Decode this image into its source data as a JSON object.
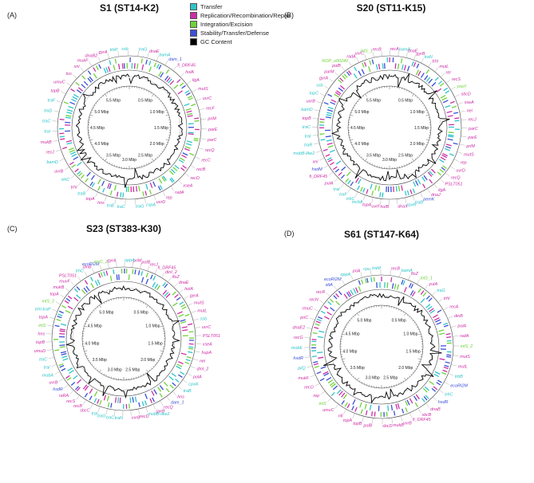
{
  "legend": [
    {
      "label": "Transfer",
      "color": "#2ec4c9"
    },
    {
      "label": "Replication/Recombination/Repair",
      "color": "#cc2fa6"
    },
    {
      "label": "Integration/Excision",
      "color": "#6fd23a"
    },
    {
      "label": "Stability/Transfer/Defense",
      "color": "#3b4fd6"
    },
    {
      "label": "GC Content",
      "color": "#000000"
    }
  ],
  "panels": [
    {
      "id": "A",
      "panel_label": "(A)",
      "title": "S1 (ST14-K2)",
      "scale": [
        "0.5 Mbp",
        "1.0 Mbp",
        "1.5 Mbp",
        "2.0 Mbp",
        "2.5 Mbp",
        "3.0 Mbp",
        "3.5 Mbp",
        "4.0 Mbp",
        "4.5 Mbp",
        "5.0 Mbp",
        "5.5 Mbp"
      ],
      "genes": [
        {
          "name": "traG",
          "cat": 0
        },
        {
          "name": "dnaE",
          "cat": 1
        },
        {
          "name": "bamA",
          "cat": 0
        },
        {
          "name": "dam_1",
          "cat": 3
        },
        {
          "name": "fi_DRF45",
          "cat": 1
        },
        {
          "name": "holA",
          "cat": 1
        },
        {
          "name": "ligA",
          "cat": 1
        },
        {
          "name": "mutS",
          "cat": 1
        },
        {
          "name": "uvrC",
          "cat": 1
        },
        {
          "name": "recF",
          "cat": 1
        },
        {
          "name": "priM",
          "cat": 1
        },
        {
          "name": "parE",
          "cat": 1
        },
        {
          "name": "parC",
          "cat": 1
        },
        {
          "name": "recQ",
          "cat": 1
        },
        {
          "name": "recC",
          "cat": 1
        },
        {
          "name": "recB",
          "cat": 1
        },
        {
          "name": "recD",
          "cat": 1
        },
        {
          "name": "xseA",
          "cat": 1
        },
        {
          "name": "radA",
          "cat": 1
        },
        {
          "name": "rep",
          "cat": 1
        },
        {
          "name": "uvrD",
          "cat": 1
        },
        {
          "name": "cspA",
          "cat": 0
        },
        {
          "name": "traG",
          "cat": 0
        },
        {
          "name": "traC",
          "cat": 0
        },
        {
          "name": "traE",
          "cat": 0
        },
        {
          "name": "hns",
          "cat": 1
        },
        {
          "name": "topA",
          "cat": 1
        },
        {
          "name": "traB",
          "cat": 0
        },
        {
          "name": "trhI",
          "cat": 1
        },
        {
          "name": "trhC",
          "cat": 0
        },
        {
          "name": "uvrB",
          "cat": 1
        },
        {
          "name": "bamD",
          "cat": 0
        },
        {
          "name": "recJ",
          "cat": 1
        },
        {
          "name": "mukB",
          "cat": 1
        },
        {
          "name": "traI",
          "cat": 0
        },
        {
          "name": "traC",
          "cat": 0
        },
        {
          "name": "traD",
          "cat": 0
        },
        {
          "name": "traF",
          "cat": 0
        },
        {
          "name": "topB",
          "cat": 1
        },
        {
          "name": "umuC",
          "cat": 1
        },
        {
          "name": "tus",
          "cat": 1
        },
        {
          "name": "xni",
          "cat": 1
        },
        {
          "name": "mukF",
          "cat": 1
        },
        {
          "name": "dnaB2",
          "cat": 1
        },
        {
          "name": "gyrA",
          "cat": 1
        },
        {
          "name": "trbP",
          "cat": 0
        },
        {
          "name": "ssb",
          "cat": 0
        }
      ]
    },
    {
      "id": "B",
      "panel_label": "(B)",
      "title": "S20 (ST11-K15)",
      "scale": [
        "0.5 Mbp",
        "1.0 Mbp",
        "1.5 Mbp",
        "2.0 Mbp",
        "2.5 Mbp",
        "3.0 Mbp",
        "3.5 Mbp",
        "4.0 Mbp",
        "4.5 Mbp",
        "5.0 Mbp",
        "5.5 Mbp"
      ],
      "genes": [
        {
          "name": "bamA",
          "cat": 0
        },
        {
          "name": "dnaE",
          "cat": 1
        },
        {
          "name": "gyrB",
          "cat": 1
        },
        {
          "name": "traN",
          "cat": 0
        },
        {
          "name": "trhI",
          "cat": 1
        },
        {
          "name": "mutL",
          "cat": 1
        },
        {
          "name": "rer",
          "cat": 1
        },
        {
          "name": "recS",
          "cat": 1
        },
        {
          "name": "yoaY",
          "cat": 2
        },
        {
          "name": "sbcD",
          "cat": 1
        },
        {
          "name": "xseA",
          "cat": 1
        },
        {
          "name": "nei",
          "cat": 1
        },
        {
          "name": "recJ",
          "cat": 1
        },
        {
          "name": "parC",
          "cat": 1
        },
        {
          "name": "parE",
          "cat": 1
        },
        {
          "name": "priM",
          "cat": 1
        },
        {
          "name": "mutS",
          "cat": 1
        },
        {
          "name": "rep",
          "cat": 1
        },
        {
          "name": "uvrD",
          "cat": 1
        },
        {
          "name": "recQ",
          "cat": 1
        },
        {
          "name": "PSLT051",
          "cat": 1
        },
        {
          "name": "ligA",
          "cat": 1
        },
        {
          "name": "dnaJ",
          "cat": 1
        },
        {
          "name": "pemK",
          "cat": 3
        },
        {
          "name": "traB",
          "cat": 0
        },
        {
          "name": "cpxR",
          "cat": 0
        },
        {
          "name": "dnaX",
          "cat": 1
        },
        {
          "name": "holB",
          "cat": 1
        },
        {
          "name": "uvrF",
          "cat": 1
        },
        {
          "name": "topA",
          "cat": 1
        },
        {
          "name": "mcbA",
          "cat": 0
        },
        {
          "name": "trbC",
          "cat": 0
        },
        {
          "name": "traF",
          "cat": 0
        },
        {
          "name": "traI",
          "cat": 0
        },
        {
          "name": "pulA",
          "cat": 1
        },
        {
          "name": "fi_DRF45",
          "cat": 1
        },
        {
          "name": "hsdM",
          "cat": 3
        },
        {
          "name": "xni",
          "cat": 1
        },
        {
          "name": "mobB-like2",
          "cat": 0
        },
        {
          "name": "traR",
          "cat": 0
        },
        {
          "name": "traI",
          "cat": 0
        },
        {
          "name": "traC",
          "cat": 0
        },
        {
          "name": "topB",
          "cat": 1
        },
        {
          "name": "bamD",
          "cat": 0
        },
        {
          "name": "uvrB",
          "cat": 1
        },
        {
          "name": "topC",
          "cat": 0
        },
        {
          "name": "ssb",
          "cat": 0
        },
        {
          "name": "gyrA",
          "cat": 1
        },
        {
          "name": "parM",
          "cat": 1
        },
        {
          "name": "polB",
          "cat": 1
        },
        {
          "name": "NOP_o00240",
          "cat": 2
        },
        {
          "name": "radA",
          "cat": 1
        },
        {
          "name": "uvrC",
          "cat": 1
        },
        {
          "name": "intS_1",
          "cat": 2
        },
        {
          "name": "recB",
          "cat": 1
        },
        {
          "name": "recA",
          "cat": 1
        }
      ]
    },
    {
      "id": "C",
      "panel_label": "(C)",
      "title": "S23 (ST383-K30)",
      "scale": [
        "0.5 Mbp",
        "1.0 Mbp",
        "1.5 Mbp",
        "2.0 Mbp",
        "2.5 Mbp",
        "3.0 Mbp",
        "3.5 Mbp",
        "4.0 Mbp",
        "4.5 Mbp",
        "5.0 Mbp"
      ],
      "genes": [
        {
          "name": "priM",
          "cat": 1
        },
        {
          "name": "polB",
          "cat": 1
        },
        {
          "name": "recJ",
          "cat": 1
        },
        {
          "name": "fi_DRF45",
          "cat": 1
        },
        {
          "name": "dinI_2",
          "cat": 1
        },
        {
          "name": "ftsZ",
          "cat": 1
        },
        {
          "name": "dnaE",
          "cat": 1
        },
        {
          "name": "holA",
          "cat": 1
        },
        {
          "name": "gyrA",
          "cat": 1
        },
        {
          "name": "mutS",
          "cat": 1
        },
        {
          "name": "mutL",
          "cat": 1
        },
        {
          "name": "ssb",
          "cat": 0
        },
        {
          "name": "uvrC",
          "cat": 1
        },
        {
          "name": "PSLT051",
          "cat": 1
        },
        {
          "name": "xseA",
          "cat": 1
        },
        {
          "name": "hupA",
          "cat": 1
        },
        {
          "name": "nei",
          "cat": 1
        },
        {
          "name": "dinI_2",
          "cat": 1
        },
        {
          "name": "polA",
          "cat": 1
        },
        {
          "name": "cpxA",
          "cat": 0
        },
        {
          "name": "traB",
          "cat": 0
        },
        {
          "name": "hns",
          "cat": 1
        },
        {
          "name": "dam_1",
          "cat": 3
        },
        {
          "name": "recQ",
          "cat": 1
        },
        {
          "name": "gyrB",
          "cat": 1
        },
        {
          "name": "mobB-like2",
          "cat": 0
        },
        {
          "name": "recD",
          "cat": 1
        },
        {
          "name": "uvrB",
          "cat": 1
        },
        {
          "name": "traN",
          "cat": 0
        },
        {
          "name": "traC",
          "cat": 0
        },
        {
          "name": "traG",
          "cat": 0
        },
        {
          "name": "traI",
          "cat": 0
        },
        {
          "name": "sbcC",
          "cat": 1
        },
        {
          "name": "recB",
          "cat": 1
        },
        {
          "name": "recS",
          "cat": 1
        },
        {
          "name": "raRA",
          "cat": 1
        },
        {
          "name": "hsdR",
          "cat": 3
        },
        {
          "name": "uvrB",
          "cat": 1
        },
        {
          "name": "mobA",
          "cat": 0
        },
        {
          "name": "traI",
          "cat": 0
        },
        {
          "name": "traC",
          "cat": 0
        },
        {
          "name": "umuD",
          "cat": 1
        },
        {
          "name": "topB",
          "cat": 1
        },
        {
          "name": "hns",
          "cat": 1
        },
        {
          "name": "intS",
          "cat": 2
        },
        {
          "name": "topA",
          "cat": 1
        },
        {
          "name": "trhI-traP",
          "cat": 0
        },
        {
          "name": "intS_2",
          "cat": 2
        },
        {
          "name": "topA",
          "cat": 1
        },
        {
          "name": "mukB",
          "cat": 1
        },
        {
          "name": "muvF",
          "cat": 1
        },
        {
          "name": "PSLT051",
          "cat": 1
        },
        {
          "name": "trhC",
          "cat": 0
        },
        {
          "name": "dinB",
          "cat": 1
        },
        {
          "name": "ecoRI2M",
          "cat": 3
        },
        {
          "name": "xerC_2",
          "cat": 2
        },
        {
          "name": "gyrA",
          "cat": 1
        },
        {
          "name": "oppA",
          "cat": 0
        }
      ]
    },
    {
      "id": "D",
      "panel_label": "(D)",
      "title": "S61 (ST147-K64)",
      "scale": [
        "0.5 Mbp",
        "1.0 Mbp",
        "1.5 Mbp",
        "2.0 Mbp",
        "2.5 Mbp",
        "3.0 Mbp",
        "3.5 Mbp",
        "4.0 Mbp",
        "4.5 Mbp",
        "5.0 Mbp"
      ],
      "genes": [
        {
          "name": "recB",
          "cat": 1
        },
        {
          "name": "bamA",
          "cat": 0
        },
        {
          "name": "ftsZ",
          "cat": 1
        },
        {
          "name": "intS_1",
          "cat": 2
        },
        {
          "name": "yutA",
          "cat": 1
        },
        {
          "name": "traG",
          "cat": 0
        },
        {
          "name": "trhI",
          "cat": 1
        },
        {
          "name": "recA",
          "cat": 1
        },
        {
          "name": "dinB",
          "cat": 1
        },
        {
          "name": "polA",
          "cat": 1
        },
        {
          "name": "radA",
          "cat": 1
        },
        {
          "name": "intS_2",
          "cat": 2
        },
        {
          "name": "mutS",
          "cat": 1
        },
        {
          "name": "mutL",
          "cat": 1
        },
        {
          "name": "trbB",
          "cat": 0
        },
        {
          "name": "ecoRI2M",
          "cat": 3
        },
        {
          "name": "trhC",
          "cat": 0
        },
        {
          "name": "hsdR",
          "cat": 3
        },
        {
          "name": "dnaB",
          "cat": 1
        },
        {
          "name": "sbcB",
          "cat": 1
        },
        {
          "name": "fi_DRF45",
          "cat": 1
        },
        {
          "name": "uvrB",
          "cat": 1
        },
        {
          "name": "mukB",
          "cat": 1
        },
        {
          "name": "sbcD",
          "cat": 1
        },
        {
          "name": "polB",
          "cat": 1
        },
        {
          "name": "topB",
          "cat": 1
        },
        {
          "name": "topA",
          "cat": 1
        },
        {
          "name": "nfi",
          "cat": 1
        },
        {
          "name": "umuC",
          "cat": 1
        },
        {
          "name": "intS",
          "cat": 2
        },
        {
          "name": "rep",
          "cat": 1
        },
        {
          "name": "recO",
          "cat": 1
        },
        {
          "name": "mukF",
          "cat": 1
        },
        {
          "name": "pilQ",
          "cat": 0
        },
        {
          "name": "hsdR",
          "cat": 3
        },
        {
          "name": "mobE",
          "cat": 0
        },
        {
          "name": "recG",
          "cat": 1
        },
        {
          "name": "dnaE2",
          "cat": 1
        },
        {
          "name": "priC",
          "cat": 1
        },
        {
          "name": "rmuC",
          "cat": 1
        },
        {
          "name": "recN",
          "cat": 1
        },
        {
          "name": "recR",
          "cat": 1
        },
        {
          "name": "sttA",
          "cat": 3
        },
        {
          "name": "ecoRI2M",
          "cat": 3
        },
        {
          "name": "oppA",
          "cat": 0
        },
        {
          "name": "priA",
          "cat": 1
        },
        {
          "name": "cpu",
          "cat": 0
        },
        {
          "name": "traM",
          "cat": 0
        }
      ]
    }
  ]
}
